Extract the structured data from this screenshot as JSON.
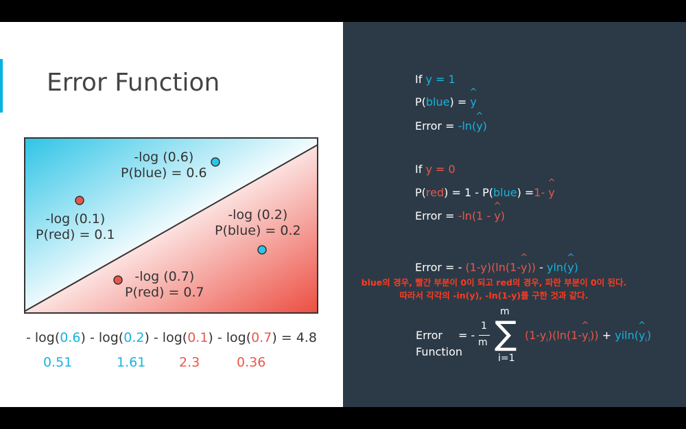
{
  "slide": {
    "title": "Error Function"
  },
  "diagram": {
    "points": [
      {
        "label1": "-log (0.6)",
        "label2": "P(blue) = 0.6",
        "color": "blue"
      },
      {
        "label1": "-log (0.1)",
        "label2": "P(red) = 0.1",
        "color": "red"
      },
      {
        "label1": "-log (0.2)",
        "label2": "P(blue) = 0.2",
        "color": "blue"
      },
      {
        "label1": "-log (0.7)",
        "label2": "P(red) = 0.7",
        "color": "red"
      }
    ]
  },
  "sum": {
    "parts": [
      "- log(",
      "0.6",
      ") - log(",
      "0.2",
      ") - log(",
      "0.1",
      ") - log(",
      "0.7",
      ") = 4.8"
    ],
    "values": [
      "0.51",
      "1.61",
      "2.3",
      "0.36"
    ]
  },
  "cases": {
    "if1": {
      "prefix": "If ",
      "cond": "y = 1"
    },
    "p_blue": {
      "a": "P(",
      "b": "blue",
      "c": ") = ",
      "d": "y"
    },
    "err1": {
      "a": "Error = ",
      "b": "-ln(",
      "c": "y",
      "d": ")"
    },
    "if0": {
      "prefix": "If ",
      "cond": "y = 0"
    },
    "p_red": {
      "a": "P(",
      "b": "red",
      "c": ") = 1 - P(",
      "d": "blue",
      "e": ") =",
      "f": "1- ",
      "g": "y"
    },
    "err0": {
      "a": "Error = ",
      "b": "-ln(1 - ",
      "c": "y",
      "d": ")"
    },
    "err_combined": {
      "a": "Error = - ",
      "b": "(1-y)(ln(1-",
      "c": "y",
      "d": "))",
      "e": " - ",
      "f": "yln(",
      "g": "y",
      "h": ")"
    }
  },
  "annotation": {
    "line1": "blue의 경우, 빨간 부분이 0이 되고 red의 경우, 파란 부분이 0이 된다.",
    "line2": "따라서 각각의 -in(y), -ln(1-y)를 구한 것과 같다."
  },
  "formula": {
    "label1": "Error",
    "label2": "Function",
    "eq": "= -",
    "num": "1",
    "den": "m",
    "sig_top": "m",
    "sig_bot": "i=1",
    "red_a": "(1-y",
    "red_sub1": "i",
    "red_b": ")(ln(1-",
    "red_hat": "y",
    "red_sub2": "i",
    "red_c": "))",
    "plus": " + ",
    "blue_a": "yiln(",
    "blue_hat": "y",
    "blue_sub": "i",
    "blue_b": ")"
  },
  "colors": {
    "blue": "#15b4dc",
    "red": "#e9574a",
    "dark_panel": "#2c3a47",
    "accent": "#02b3e4",
    "annotation": "#ff3b1f"
  }
}
